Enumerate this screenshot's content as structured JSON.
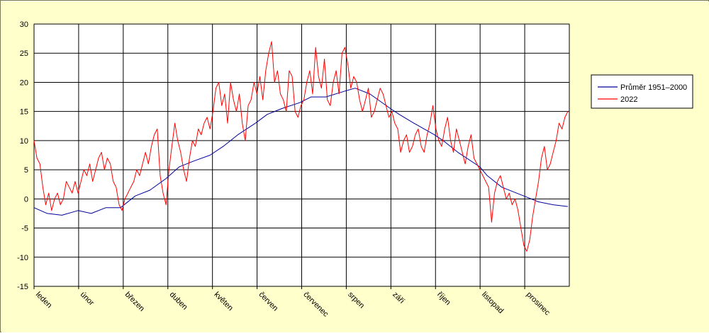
{
  "colors": {
    "background": "#FFFFCC",
    "plot_area": "#FFFFFF",
    "grid": "#000000",
    "average": "#000099",
    "year2022": "#FF0000"
  },
  "chart_data": {
    "type": "line",
    "ylim": [
      -15,
      30
    ],
    "yticks": [
      30,
      25,
      20,
      15,
      10,
      5,
      0,
      -5,
      -10,
      -15
    ],
    "months": [
      "leden",
      "únor",
      "březen",
      "duben",
      "květen",
      "červen",
      "červenec",
      "srpen",
      "září",
      "říjen",
      "listopad",
      "prosinec"
    ],
    "grid": true,
    "legend_position": "right",
    "series": [
      {
        "name": "Průměr 1951–2000",
        "color": "#000099",
        "x_days": [
          1,
          10,
          20,
          31,
          40,
          50,
          60,
          70,
          80,
          91,
          100,
          110,
          121,
          130,
          140,
          152,
          160,
          170,
          182,
          190,
          200,
          213,
          220,
          230,
          244,
          250,
          260,
          274,
          280,
          290,
          305,
          310,
          320,
          335,
          345,
          355,
          365
        ],
        "values": [
          -1.5,
          -2.5,
          -2.8,
          -2.0,
          -2.5,
          -1.5,
          -1.5,
          0.5,
          1.5,
          3.5,
          5.5,
          6.5,
          7.5,
          9.0,
          11.0,
          13.0,
          14.5,
          15.5,
          16.5,
          17.5,
          17.5,
          18.5,
          19.0,
          18.0,
          15.5,
          14.5,
          13.0,
          11.0,
          10.0,
          8.0,
          5.5,
          4.0,
          2.0,
          0.5,
          -0.5,
          -1.0,
          -1.3
        ]
      },
      {
        "name": "2022",
        "color": "#FF0000",
        "x_days": [
          1,
          3,
          5,
          7,
          9,
          11,
          13,
          15,
          17,
          19,
          21,
          23,
          25,
          27,
          29,
          31,
          33,
          35,
          37,
          39,
          41,
          43,
          45,
          47,
          49,
          51,
          53,
          55,
          57,
          59,
          61,
          63,
          65,
          67,
          69,
          71,
          73,
          75,
          77,
          79,
          81,
          83,
          85,
          87,
          89,
          91,
          93,
          95,
          97,
          99,
          101,
          103,
          105,
          107,
          109,
          111,
          113,
          115,
          117,
          119,
          121,
          123,
          125,
          127,
          129,
          131,
          133,
          135,
          137,
          139,
          141,
          143,
          145,
          147,
          149,
          151,
          153,
          155,
          157,
          159,
          161,
          163,
          165,
          167,
          169,
          171,
          173,
          175,
          177,
          179,
          181,
          183,
          185,
          187,
          189,
          191,
          193,
          195,
          197,
          199,
          201,
          203,
          205,
          207,
          209,
          211,
          213,
          215,
          217,
          219,
          221,
          223,
          225,
          227,
          229,
          231,
          233,
          235,
          237,
          239,
          241,
          243,
          245,
          247,
          249,
          251,
          253,
          255,
          257,
          259,
          261,
          263,
          265,
          267,
          269,
          271,
          273,
          275,
          277,
          279,
          281,
          283,
          285,
          287,
          289,
          291,
          293,
          295,
          297,
          299,
          301,
          303,
          305,
          307,
          309,
          311,
          313,
          315,
          317,
          319,
          321,
          323,
          325,
          327,
          329,
          331,
          333,
          335,
          337,
          339,
          341,
          343,
          345,
          347,
          349,
          351,
          353,
          355,
          357,
          359,
          361,
          363,
          365
        ],
        "values": [
          10,
          7,
          6,
          2,
          -1,
          1,
          -2,
          0,
          1,
          -1,
          0,
          3,
          2,
          1,
          3,
          1,
          3,
          5,
          4,
          6,
          3,
          5,
          7,
          8,
          5,
          7,
          6,
          3,
          2,
          -1,
          -2,
          0,
          1,
          2,
          3,
          5,
          4,
          6,
          8,
          6,
          9,
          11,
          12,
          4,
          1,
          -1,
          5,
          9,
          13,
          10,
          8,
          5,
          3,
          7,
          10,
          9,
          12,
          11,
          13,
          14,
          12,
          15,
          19,
          20,
          16,
          18,
          13,
          20,
          17,
          15,
          18,
          13,
          10,
          16,
          17,
          20,
          18,
          21,
          17,
          22,
          25,
          27,
          20,
          22,
          18,
          17,
          15,
          22,
          21,
          15,
          14,
          16,
          17,
          20,
          22,
          18,
          26,
          21,
          19,
          24,
          17,
          16,
          20,
          22,
          18,
          25,
          26,
          23,
          19,
          21,
          20,
          17,
          15,
          17,
          19,
          14,
          15,
          17,
          19,
          18,
          16,
          14,
          15,
          13,
          12,
          8,
          10,
          11,
          8,
          9,
          11,
          12,
          9,
          8,
          11,
          13,
          16,
          12,
          10,
          9,
          12,
          14,
          10,
          8,
          12,
          10,
          8,
          6,
          9,
          11,
          7,
          6,
          5,
          4,
          3,
          2,
          -4,
          1,
          3,
          4,
          2,
          0,
          1,
          -1,
          0,
          -2,
          -5,
          -8,
          -9,
          -7,
          -3,
          0,
          3,
          7,
          9,
          5,
          6,
          8,
          10,
          13,
          12,
          14,
          15
        ]
      }
    ]
  }
}
